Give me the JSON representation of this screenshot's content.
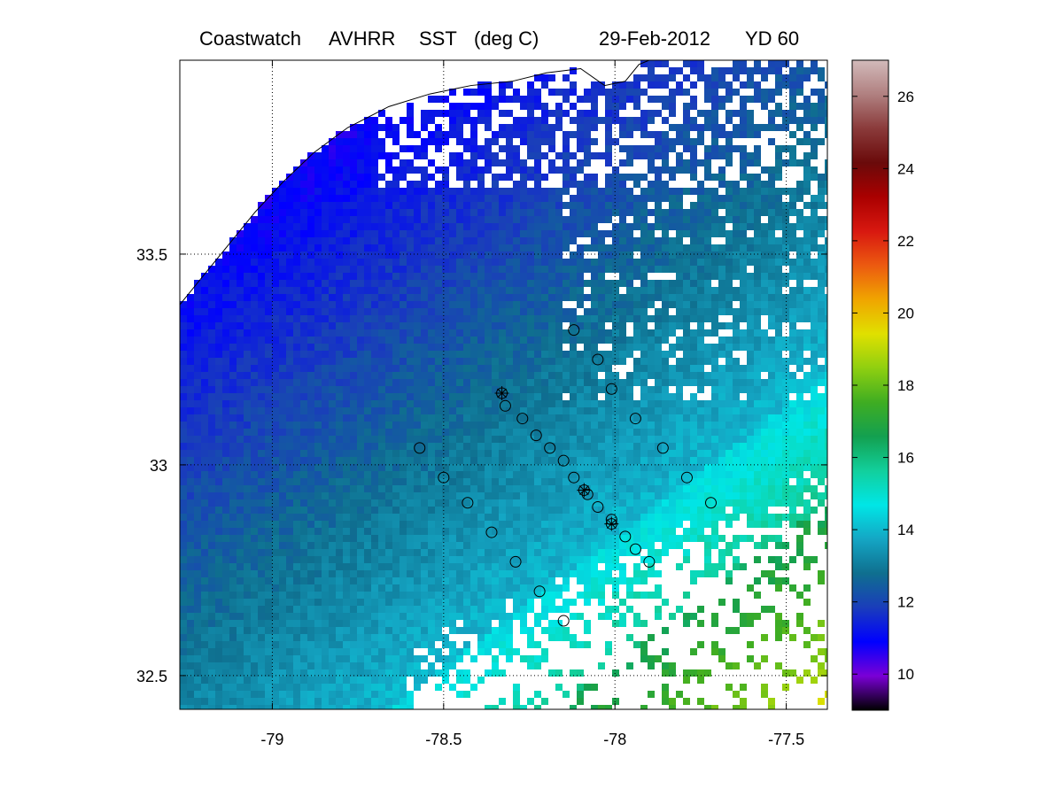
{
  "figure": {
    "title_parts": [
      "Coastwatch",
      "AVHRR",
      "SST",
      "(deg C)",
      "29-Feb-2012",
      "YD 60"
    ]
  },
  "axes": {
    "lon_range": [
      -79.27,
      -77.38
    ],
    "lat_range": [
      32.42,
      33.96
    ],
    "x_ticks": [
      -79,
      -78.5,
      -78,
      -77.5
    ],
    "x_tick_labels": [
      "-79",
      "-78.5",
      "-78",
      "-77.5"
    ],
    "y_ticks": [
      32.5,
      33,
      33.5
    ],
    "y_tick_labels": [
      "32.5",
      "33",
      "33.5"
    ],
    "grid": "dotted"
  },
  "colorbar": {
    "range": [
      9,
      27
    ],
    "ticks": [
      10,
      12,
      14,
      16,
      18,
      20,
      22,
      24,
      26
    ],
    "tick_labels": [
      "10",
      "12",
      "14",
      "16",
      "18",
      "20",
      "22",
      "24",
      "26"
    ],
    "colors": [
      "#000000",
      "#7a00d6",
      "#0000ff",
      "#1a3dbb",
      "#0f6f8f",
      "#14a6c4",
      "#00e6e6",
      "#12cf9c",
      "#13a050",
      "#3fad22",
      "#8fcf10",
      "#e0e000",
      "#f0a500",
      "#ec5a10",
      "#d81810",
      "#aa0000",
      "#6a0a0a",
      "#8a3a3a",
      "#b08080",
      "#d2baba"
    ]
  },
  "stations": {
    "circles": [
      [
        -78.12,
        33.32
      ],
      [
        -78.05,
        33.25
      ],
      [
        -78.01,
        33.18
      ],
      [
        -77.94,
        33.11
      ],
      [
        -77.86,
        33.04
      ],
      [
        -77.79,
        32.97
      ],
      [
        -77.72,
        32.91
      ],
      [
        -78.32,
        33.14
      ],
      [
        -78.27,
        33.11
      ],
      [
        -78.23,
        33.07
      ],
      [
        -78.19,
        33.04
      ],
      [
        -78.15,
        33.01
      ],
      [
        -78.12,
        32.97
      ],
      [
        -78.08,
        32.93
      ],
      [
        -78.05,
        32.9
      ],
      [
        -78.01,
        32.87
      ],
      [
        -77.97,
        32.83
      ],
      [
        -77.94,
        32.8
      ],
      [
        -77.9,
        32.77
      ],
      [
        -78.57,
        33.04
      ],
      [
        -78.5,
        32.97
      ],
      [
        -78.43,
        32.91
      ],
      [
        -78.36,
        32.84
      ],
      [
        -78.29,
        32.77
      ],
      [
        -78.22,
        32.7
      ],
      [
        -78.15,
        32.63
      ]
    ],
    "crossed": [
      [
        -78.33,
        33.17
      ],
      [
        -78.09,
        32.94
      ],
      [
        -78.01,
        32.86
      ]
    ]
  },
  "coastline": [
    [
      -79.27,
      33.38
    ],
    [
      -79.2,
      33.45
    ],
    [
      -79.12,
      33.53
    ],
    [
      -79.05,
      33.6
    ],
    [
      -78.97,
      33.67
    ],
    [
      -78.88,
      33.74
    ],
    [
      -78.78,
      33.8
    ],
    [
      -78.66,
      33.85
    ],
    [
      -78.54,
      33.88
    ],
    [
      -78.42,
      33.9
    ],
    [
      -78.3,
      33.91
    ],
    [
      -78.2,
      33.93
    ],
    [
      -78.1,
      33.94
    ],
    [
      -78.03,
      33.9
    ],
    [
      -77.97,
      33.91
    ],
    [
      -77.93,
      33.95
    ],
    [
      -77.9,
      33.96
    ]
  ]
}
